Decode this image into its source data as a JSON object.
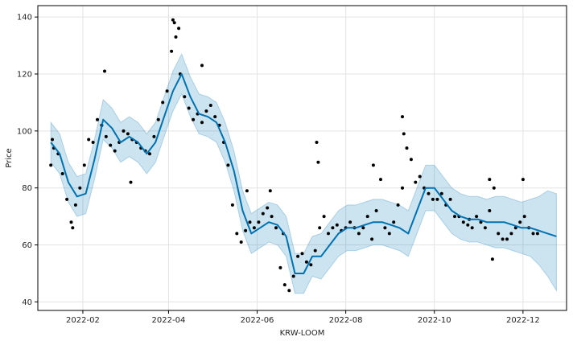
{
  "chart_data": {
    "type": "scatter",
    "title": "",
    "xlabel": "KRW-LOOM",
    "ylabel": "Price",
    "grid": true,
    "x_range": [
      "2022-01-01",
      "2022-12-31"
    ],
    "ylim": [
      37,
      144
    ],
    "x_ticks": [
      "2022-02",
      "2022-04",
      "2022-06",
      "2022-08",
      "2022-10",
      "2022-12"
    ],
    "y_ticks": [
      40,
      60,
      80,
      100,
      120,
      140
    ],
    "colors": {
      "points": "#000000",
      "forecast_line": "#0072B2",
      "uncertainty_band": "#0072B2",
      "grid": "#e3e3e3"
    },
    "series": [
      {
        "role": "observed",
        "style": "points",
        "x": [
          "2022-01-10",
          "2022-01-12",
          "2022-01-15",
          "2022-01-18",
          "2022-01-21",
          "2022-01-24",
          "2022-01-27",
          "2022-01-30",
          "2022-02-02",
          "2022-02-05",
          "2022-02-08",
          "2022-02-11",
          "2022-02-14",
          "2022-02-17",
          "2022-02-20",
          "2022-02-23",
          "2022-02-26",
          "2022-03-01",
          "2022-03-04",
          "2022-03-07",
          "2022-03-10",
          "2022-03-13",
          "2022-03-16",
          "2022-03-19",
          "2022-03-22",
          "2022-03-25",
          "2022-03-28",
          "2022-03-31",
          "2022-04-03",
          "2022-04-06",
          "2022-04-09",
          "2022-04-12",
          "2022-04-15",
          "2022-04-18",
          "2022-04-21",
          "2022-04-24",
          "2022-04-27",
          "2022-04-30",
          "2022-05-03",
          "2022-05-06",
          "2022-05-09",
          "2022-05-12",
          "2022-05-15",
          "2022-05-18",
          "2022-05-21",
          "2022-05-24",
          "2022-05-27",
          "2022-05-30",
          "2022-06-02",
          "2022-06-05",
          "2022-06-08",
          "2022-06-11",
          "2022-06-14",
          "2022-06-17",
          "2022-06-20",
          "2022-06-23",
          "2022-06-26",
          "2022-06-29",
          "2022-07-02",
          "2022-07-05",
          "2022-07-08",
          "2022-07-11",
          "2022-07-14",
          "2022-07-17",
          "2022-07-20",
          "2022-07-23",
          "2022-07-26",
          "2022-07-29",
          "2022-08-01",
          "2022-08-04",
          "2022-08-07",
          "2022-08-10",
          "2022-08-13",
          "2022-08-16",
          "2022-08-19",
          "2022-08-22",
          "2022-08-25",
          "2022-08-28",
          "2022-08-31",
          "2022-09-03",
          "2022-09-06",
          "2022-09-09",
          "2022-09-12",
          "2022-09-15",
          "2022-09-18",
          "2022-09-21",
          "2022-09-24",
          "2022-09-27",
          "2022-09-30",
          "2022-10-03",
          "2022-10-06",
          "2022-10-09",
          "2022-10-12",
          "2022-10-15",
          "2022-10-18",
          "2022-10-21",
          "2022-10-24",
          "2022-10-27",
          "2022-10-30",
          "2022-11-02",
          "2022-11-05",
          "2022-11-08",
          "2022-11-11",
          "2022-11-14",
          "2022-11-17",
          "2022-11-20",
          "2022-11-23",
          "2022-11-26",
          "2022-11-29",
          "2022-12-02",
          "2022-12-05",
          "2022-12-08",
          "2022-12-11",
          "2022-01-11",
          "2022-01-25",
          "2022-02-16",
          "2022-03-06",
          "2022-04-04",
          "2022-04-05",
          "2022-04-08",
          "2022-04-24",
          "2022-05-25",
          "2022-06-10",
          "2022-06-19",
          "2022-07-12",
          "2022-07-13",
          "2022-08-20",
          "2022-09-09",
          "2022-09-10",
          "2022-10-25",
          "2022-11-08",
          "2022-11-10",
          "2022-12-01"
        ],
        "y": [
          88,
          94,
          92,
          85,
          76,
          68,
          74,
          80,
          88,
          97,
          96,
          104,
          102,
          98,
          95,
          93,
          96,
          100,
          99,
          97,
          96,
          94,
          93,
          92,
          98,
          104,
          110,
          114,
          128,
          133,
          120,
          112,
          108,
          104,
          106,
          103,
          107,
          109,
          105,
          102,
          96,
          88,
          74,
          64,
          61,
          65,
          68,
          66,
          68,
          71,
          73,
          70,
          66,
          52,
          46,
          44,
          49,
          56,
          57,
          54,
          53,
          58,
          66,
          70,
          64,
          66,
          67,
          65,
          66,
          68,
          66,
          64,
          66,
          70,
          62,
          72,
          83,
          66,
          64,
          68,
          74,
          80,
          94,
          90,
          82,
          84,
          80,
          78,
          76,
          76,
          78,
          74,
          76,
          70,
          70,
          68,
          67,
          66,
          70,
          68,
          66,
          72,
          80,
          64,
          62,
          62,
          64,
          66,
          68,
          70,
          66,
          64,
          64,
          97,
          66,
          121,
          82,
          139,
          138,
          136,
          123,
          79,
          79,
          64,
          96,
          89,
          88,
          105,
          99,
          69,
          83,
          55,
          83
        ]
      },
      {
        "role": "forecast",
        "style": "line",
        "x": [
          "2022-01-10",
          "2022-01-16",
          "2022-01-22",
          "2022-01-28",
          "2022-02-03",
          "2022-02-09",
          "2022-02-15",
          "2022-02-21",
          "2022-02-27",
          "2022-03-05",
          "2022-03-11",
          "2022-03-17",
          "2022-03-23",
          "2022-03-29",
          "2022-04-04",
          "2022-04-10",
          "2022-04-16",
          "2022-04-22",
          "2022-04-28",
          "2022-05-04",
          "2022-05-10",
          "2022-05-16",
          "2022-05-22",
          "2022-05-28",
          "2022-06-03",
          "2022-06-09",
          "2022-06-15",
          "2022-06-21",
          "2022-06-27",
          "2022-07-03",
          "2022-07-09",
          "2022-07-15",
          "2022-07-21",
          "2022-07-27",
          "2022-08-02",
          "2022-08-08",
          "2022-08-14",
          "2022-08-20",
          "2022-08-26",
          "2022-09-01",
          "2022-09-07",
          "2022-09-13",
          "2022-09-19",
          "2022-09-25",
          "2022-10-01",
          "2022-10-07",
          "2022-10-13",
          "2022-10-19",
          "2022-10-25",
          "2022-10-31",
          "2022-11-06",
          "2022-11-12",
          "2022-11-18",
          "2022-11-24",
          "2022-11-30",
          "2022-12-06",
          "2022-12-12",
          "2022-12-18",
          "2022-12-24"
        ],
        "y": [
          96,
          92,
          82,
          77,
          78,
          90,
          104,
          101,
          96,
          98,
          96,
          92,
          96,
          105,
          114,
          120,
          112,
          106,
          105,
          103,
          96,
          86,
          72,
          64,
          66,
          68,
          67,
          63,
          50,
          50,
          56,
          56,
          60,
          64,
          66,
          66,
          67,
          68,
          68,
          67,
          66,
          64,
          72,
          80,
          80,
          76,
          72,
          70,
          69,
          69,
          68,
          68,
          68,
          67,
          66,
          66,
          65,
          64,
          63
        ]
      }
    ],
    "uncertainty_band": {
      "x": [
        "2022-01-10",
        "2022-01-16",
        "2022-01-22",
        "2022-01-28",
        "2022-02-03",
        "2022-02-09",
        "2022-02-15",
        "2022-02-21",
        "2022-02-27",
        "2022-03-05",
        "2022-03-11",
        "2022-03-17",
        "2022-03-23",
        "2022-03-29",
        "2022-04-04",
        "2022-04-10",
        "2022-04-16",
        "2022-04-22",
        "2022-04-28",
        "2022-05-04",
        "2022-05-10",
        "2022-05-16",
        "2022-05-22",
        "2022-05-28",
        "2022-06-03",
        "2022-06-09",
        "2022-06-15",
        "2022-06-21",
        "2022-06-27",
        "2022-07-03",
        "2022-07-09",
        "2022-07-15",
        "2022-07-21",
        "2022-07-27",
        "2022-08-02",
        "2022-08-08",
        "2022-08-14",
        "2022-08-20",
        "2022-08-26",
        "2022-09-01",
        "2022-09-07",
        "2022-09-13",
        "2022-09-19",
        "2022-09-25",
        "2022-10-01",
        "2022-10-07",
        "2022-10-13",
        "2022-10-19",
        "2022-10-25",
        "2022-10-31",
        "2022-11-06",
        "2022-11-12",
        "2022-11-18",
        "2022-11-24",
        "2022-11-30",
        "2022-12-06",
        "2022-12-12",
        "2022-12-18",
        "2022-12-24"
      ],
      "lower": [
        89,
        85,
        75,
        70,
        71,
        83,
        97,
        94,
        89,
        91,
        89,
        85,
        89,
        98,
        107,
        113,
        105,
        99,
        98,
        96,
        89,
        79,
        65,
        57,
        59,
        61,
        60,
        56,
        43,
        43,
        49,
        48,
        52,
        56,
        58,
        58,
        59,
        60,
        60,
        59,
        58,
        56,
        64,
        72,
        72,
        68,
        64,
        62,
        61,
        61,
        60,
        59,
        59,
        58,
        57,
        56,
        53,
        49,
        44
      ],
      "upper": [
        103,
        99,
        89,
        84,
        85,
        97,
        111,
        108,
        103,
        105,
        103,
        99,
        103,
        112,
        121,
        127,
        119,
        113,
        112,
        110,
        103,
        93,
        79,
        71,
        73,
        75,
        74,
        70,
        57,
        57,
        63,
        64,
        68,
        72,
        74,
        74,
        75,
        76,
        76,
        75,
        74,
        72,
        80,
        88,
        88,
        84,
        80,
        78,
        77,
        77,
        76,
        77,
        77,
        76,
        75,
        76,
        77,
        79,
        78
      ]
    }
  }
}
